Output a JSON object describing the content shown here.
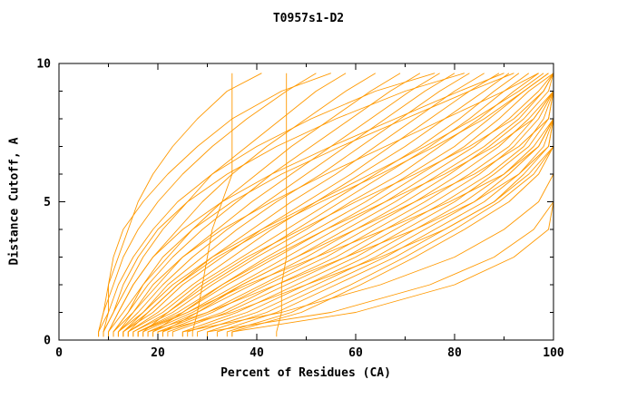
{
  "chart_data": {
    "type": "line",
    "title": "T0957s1-D2",
    "xlabel": "Percent of Residues (CA)",
    "ylabel": "Distance Cutoff, A",
    "xlim": [
      0,
      100
    ],
    "ylim": [
      0,
      10
    ],
    "x_ticks_major": [
      0,
      20,
      40,
      60,
      80,
      100
    ],
    "x_ticks_minor": [
      10,
      30,
      50,
      70,
      90
    ],
    "y_ticks_major": [
      0,
      5,
      10
    ],
    "y_ticks_minor": [
      1,
      2,
      3,
      4,
      6,
      7,
      8,
      9
    ],
    "grid": false,
    "legend": "none",
    "line_color": "#ff9900",
    "axis_color": "#000000",
    "y_levels": [
      0.3,
      1,
      2,
      3,
      4,
      5,
      6,
      7,
      8,
      9,
      9.65
    ],
    "series": [
      {
        "name": "m01",
        "x_at_y": [
          8,
          9,
          11,
          13,
          16,
          20,
          25,
          31,
          38,
          46,
          52
        ]
      },
      {
        "name": "m02",
        "x_at_y": [
          9,
          11,
          14,
          17,
          21,
          26,
          31,
          38,
          45,
          52,
          58
        ]
      },
      {
        "name": "m03",
        "x_at_y": [
          10,
          12,
          15,
          19,
          24,
          29,
          35,
          42,
          50,
          58,
          64
        ]
      },
      {
        "name": "m04",
        "x_at_y": [
          10,
          13,
          17,
          22,
          27,
          33,
          40,
          47,
          55,
          63,
          69
        ]
      },
      {
        "name": "m05",
        "x_at_y": [
          11,
          14,
          18,
          23,
          29,
          36,
          43,
          51,
          59,
          67,
          73
        ]
      },
      {
        "name": "m06",
        "x_at_y": [
          11,
          15,
          20,
          25,
          32,
          39,
          47,
          55,
          63,
          71,
          77
        ]
      },
      {
        "name": "m07",
        "x_at_y": [
          12,
          16,
          21,
          27,
          34,
          42,
          50,
          58,
          66,
          74,
          80
        ]
      },
      {
        "name": "m08",
        "x_at_y": [
          12,
          17,
          22,
          29,
          36,
          44,
          53,
          61,
          69,
          77,
          83
        ]
      },
      {
        "name": "m09",
        "x_at_y": [
          13,
          18,
          24,
          31,
          39,
          47,
          56,
          64,
          72,
          80,
          86
        ]
      },
      {
        "name": "m10",
        "x_at_y": [
          13,
          19,
          25,
          33,
          41,
          50,
          59,
          67,
          75,
          83,
          89
        ]
      },
      {
        "name": "m11",
        "x_at_y": [
          14,
          20,
          27,
          35,
          43,
          52,
          61,
          70,
          78,
          86,
          91
        ]
      },
      {
        "name": "m12",
        "x_at_y": [
          14,
          21,
          28,
          37,
          46,
          55,
          64,
          73,
          81,
          88,
          93
        ]
      },
      {
        "name": "m13",
        "x_at_y": [
          15,
          22,
          30,
          39,
          48,
          57,
          66,
          75,
          83,
          90,
          95
        ]
      },
      {
        "name": "m14",
        "x_at_y": [
          15,
          23,
          31,
          40,
          50,
          59,
          69,
          77,
          85,
          92,
          97
        ]
      },
      {
        "name": "m15",
        "x_at_y": [
          16,
          24,
          33,
          42,
          52,
          62,
          71,
          80,
          87,
          94,
          99
        ]
      },
      {
        "name": "m16",
        "x_at_y": [
          16,
          25,
          34,
          44,
          54,
          64,
          73,
          82,
          89,
          95,
          100
        ]
      },
      {
        "name": "m17",
        "x_at_y": [
          17,
          26,
          36,
          46,
          56,
          66,
          75,
          84,
          91,
          97,
          100
        ]
      },
      {
        "name": "m18",
        "x_at_y": [
          18,
          27,
          37,
          48,
          58,
          68,
          77,
          86,
          93,
          98,
          100
        ]
      },
      {
        "name": "m19",
        "x_at_y": [
          19,
          28,
          39,
          50,
          60,
          70,
          79,
          87,
          94,
          99,
          100
        ]
      },
      {
        "name": "m20",
        "x_at_y": [
          20,
          30,
          41,
          52,
          62,
          72,
          81,
          89,
          95,
          100,
          100
        ]
      },
      {
        "name": "m21",
        "x_at_y": [
          21,
          31,
          42,
          54,
          64,
          74,
          83,
          91,
          96,
          100,
          100
        ]
      },
      {
        "name": "m22",
        "x_at_y": [
          22,
          33,
          44,
          56,
          66,
          76,
          85,
          92,
          97,
          100,
          100
        ]
      },
      {
        "name": "m23",
        "x_at_y": [
          23,
          34,
          46,
          58,
          68,
          78,
          87,
          94,
          98,
          100,
          100
        ]
      },
      {
        "name": "m24",
        "x_at_y": [
          25,
          36,
          48,
          60,
          70,
          80,
          88,
          95,
          99,
          100,
          100
        ]
      },
      {
        "name": "m25",
        "x_at_y": [
          26,
          38,
          50,
          62,
          72,
          82,
          90,
          96,
          100,
          100,
          100
        ]
      },
      {
        "name": "m26",
        "x_at_y": [
          28,
          40,
          52,
          64,
          74,
          84,
          91,
          97,
          100,
          100,
          100
        ]
      },
      {
        "name": "m27",
        "x_at_y": [
          30,
          42,
          54,
          66,
          76,
          86,
          93,
          98,
          100,
          100,
          100
        ]
      },
      {
        "name": "m28",
        "x_at_y": [
          32,
          44,
          56,
          68,
          78,
          88,
          94,
          99,
          100,
          100,
          100
        ]
      },
      {
        "name": "m29",
        "x_at_y": [
          34,
          47,
          59,
          70,
          80,
          89,
          96,
          100,
          100,
          100,
          100
        ]
      },
      {
        "name": "m30",
        "x_at_y": [
          35,
          49,
          61,
          72,
          82,
          91,
          97,
          100,
          100,
          100,
          100
        ]
      },
      {
        "name": "m31",
        "x_at_y": [
          27,
          28,
          29,
          30,
          31,
          33,
          35,
          35,
          35,
          35,
          35
        ]
      },
      {
        "name": "m32",
        "x_at_y": [
          44,
          45,
          45,
          46,
          46,
          46,
          46,
          46,
          46,
          46,
          46
        ]
      },
      {
        "name": "m33",
        "x_at_y": [
          9,
          10,
          10,
          11,
          13,
          17,
          22,
          28,
          35,
          45,
          55
        ]
      },
      {
        "name": "m34",
        "x_at_y": [
          8,
          9,
          10,
          12,
          14,
          16,
          19,
          23,
          28,
          34,
          41
        ]
      },
      {
        "name": "m35",
        "x_at_y": [
          30,
          55,
          75,
          88,
          96,
          100,
          100,
          100,
          100,
          100,
          100
        ]
      },
      {
        "name": "m36",
        "x_at_y": [
          35,
          60,
          80,
          92,
          99,
          100,
          100,
          100,
          100,
          100,
          100
        ]
      },
      {
        "name": "m37",
        "x_at_y": [
          25,
          45,
          65,
          80,
          90,
          97,
          100,
          100,
          100,
          100,
          100
        ]
      },
      {
        "name": "m38",
        "x_at_y": [
          20,
          35,
          50,
          65,
          78,
          88,
          95,
          100,
          100,
          100,
          100
        ]
      },
      {
        "name": "m39",
        "x_at_y": [
          18,
          30,
          44,
          58,
          72,
          84,
          93,
          99,
          100,
          100,
          100
        ]
      },
      {
        "name": "m40",
        "x_at_y": [
          16,
          26,
          38,
          52,
          66,
          79,
          90,
          97,
          100,
          100,
          100
        ]
      },
      {
        "name": "m41",
        "x_at_y": [
          12,
          15,
          19,
          25,
          33,
          43,
          54,
          66,
          78,
          90,
          97
        ]
      },
      {
        "name": "m42",
        "x_at_y": [
          13,
          17,
          23,
          31,
          41,
          52,
          63,
          74,
          84,
          93,
          98
        ]
      },
      {
        "name": "m43",
        "x_at_y": [
          11,
          14,
          17,
          21,
          27,
          35,
          45,
          57,
          70,
          83,
          92
        ]
      },
      {
        "name": "m44",
        "x_at_y": [
          10,
          12,
          15,
          19,
          25,
          33,
          43,
          55,
          68,
          81,
          90
        ]
      },
      {
        "name": "m45",
        "x_at_y": [
          14,
          18,
          24,
          32,
          42,
          53,
          65,
          76,
          86,
          94,
          99
        ]
      },
      {
        "name": "m46",
        "x_at_y": [
          9,
          11,
          13,
          16,
          20,
          26,
          34,
          44,
          56,
          70,
          82
        ]
      },
      {
        "name": "m47",
        "x_at_y": [
          8,
          10,
          12,
          15,
          19,
          24,
          31,
          40,
          51,
          64,
          76
        ]
      },
      {
        "name": "m48",
        "x_at_y": [
          17,
          22,
          29,
          38,
          49,
          60,
          72,
          83,
          92,
          98,
          100
        ]
      },
      {
        "name": "m49",
        "x_at_y": [
          19,
          25,
          33,
          43,
          54,
          66,
          78,
          88,
          96,
          100,
          100
        ]
      },
      {
        "name": "m50",
        "x_at_y": [
          21,
          28,
          37,
          48,
          60,
          72,
          84,
          93,
          99,
          100,
          100
        ]
      }
    ]
  }
}
